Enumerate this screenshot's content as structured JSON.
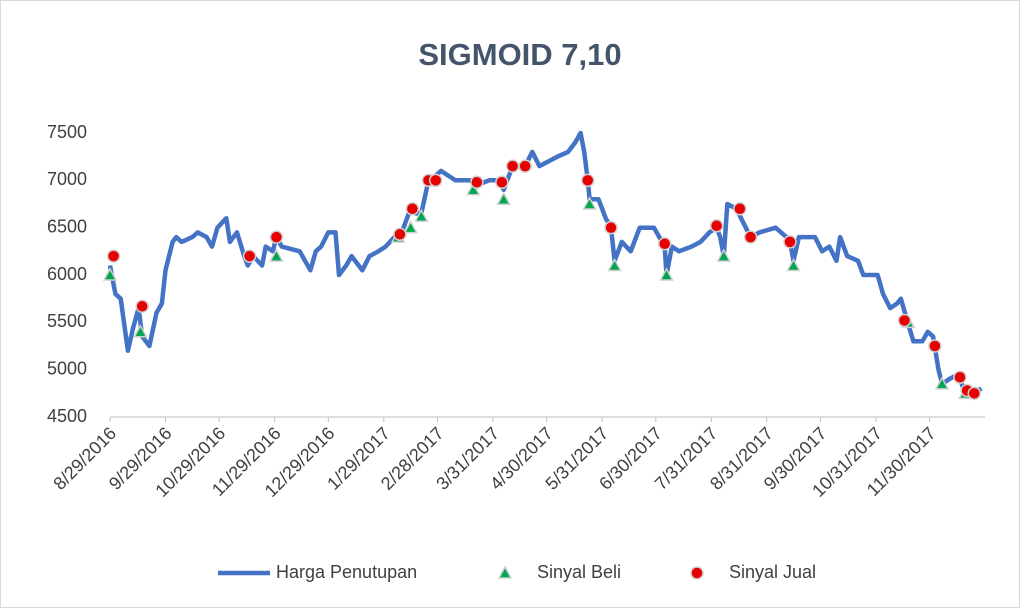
{
  "chart_data": {
    "type": "line",
    "title": "SIGMOID 7,10",
    "xlim": [
      "2016-08-29",
      "2017-12-31"
    ],
    "xticks": [
      {
        "value": "2016-08-29",
        "label": "8/29/2016"
      },
      {
        "value": "2016-09-29",
        "label": "9/29/2016"
      },
      {
        "value": "2016-10-29",
        "label": "10/29/2016"
      },
      {
        "value": "2016-11-29",
        "label": "11/29/2016"
      },
      {
        "value": "2016-12-29",
        "label": "12/29/2016"
      },
      {
        "value": "2017-01-29",
        "label": "1/29/2017"
      },
      {
        "value": "2017-02-28",
        "label": "2/28/2017"
      },
      {
        "value": "2017-03-31",
        "label": "3/31/2017"
      },
      {
        "value": "2017-04-30",
        "label": "4/30/2017"
      },
      {
        "value": "2017-05-31",
        "label": "5/31/2017"
      },
      {
        "value": "2017-06-30",
        "label": "6/30/2017"
      },
      {
        "value": "2017-07-31",
        "label": "7/31/2017"
      },
      {
        "value": "2017-08-31",
        "label": "8/31/2017"
      },
      {
        "value": "2017-09-30",
        "label": "9/30/2017"
      },
      {
        "value": "2017-10-31",
        "label": "10/31/2017"
      },
      {
        "value": "2017-11-30",
        "label": "11/30/2017"
      }
    ],
    "ylim": [
      4500,
      7500
    ],
    "yticks": [
      4500,
      5000,
      5500,
      6000,
      6500,
      7000,
      7500
    ],
    "grid": false,
    "legend": "bottom",
    "series": [
      {
        "name": "Harga Penutupan",
        "type": "line",
        "color": "#4472c4",
        "x": [
          "2016-08-29",
          "2016-09-01",
          "2016-09-04",
          "2016-09-08",
          "2016-09-11",
          "2016-09-14",
          "2016-09-16",
          "2016-09-20",
          "2016-09-24",
          "2016-09-27",
          "2016-09-29",
          "2016-10-03",
          "2016-10-05",
          "2016-10-08",
          "2016-10-14",
          "2016-10-17",
          "2016-10-22",
          "2016-10-25",
          "2016-10-28",
          "2016-11-02",
          "2016-11-04",
          "2016-11-08",
          "2016-11-12",
          "2016-11-14",
          "2016-11-17",
          "2016-11-22",
          "2016-11-24",
          "2016-11-28",
          "2016-11-30",
          "2016-12-03",
          "2016-12-13",
          "2016-12-19",
          "2016-12-22",
          "2016-12-25",
          "2016-12-29",
          "2017-01-02",
          "2017-01-04",
          "2017-01-08",
          "2017-01-11",
          "2017-01-15",
          "2017-01-17",
          "2017-01-21",
          "2017-01-26",
          "2017-01-30",
          "2017-02-04",
          "2017-02-08",
          "2017-02-13",
          "2017-02-16",
          "2017-02-19",
          "2017-02-23",
          "2017-02-27",
          "2017-03-02",
          "2017-03-10",
          "2017-03-18",
          "2017-03-22",
          "2017-03-29",
          "2017-04-03",
          "2017-04-06",
          "2017-04-10",
          "2017-04-14",
          "2017-04-18",
          "2017-04-22",
          "2017-04-26",
          "2017-05-01",
          "2017-05-06",
          "2017-05-12",
          "2017-05-16",
          "2017-05-19",
          "2017-05-21",
          "2017-05-23",
          "2017-05-24",
          "2017-05-29",
          "2017-06-02",
          "2017-06-05",
          "2017-06-07",
          "2017-06-11",
          "2017-06-16",
          "2017-06-21",
          "2017-06-29",
          "2017-07-02",
          "2017-07-05",
          "2017-07-06",
          "2017-07-09",
          "2017-07-13",
          "2017-07-20",
          "2017-07-25",
          "2017-07-30",
          "2017-08-03",
          "2017-08-05",
          "2017-08-07",
          "2017-08-09",
          "2017-08-14",
          "2017-08-18",
          "2017-08-22",
          "2017-08-27",
          "2017-09-05",
          "2017-09-11",
          "2017-09-13",
          "2017-09-15",
          "2017-09-18",
          "2017-09-27",
          "2017-10-01",
          "2017-10-05",
          "2017-10-09",
          "2017-10-11",
          "2017-10-15",
          "2017-10-21",
          "2017-10-24",
          "2017-11-01",
          "2017-11-04",
          "2017-11-08",
          "2017-11-12",
          "2017-11-14",
          "2017-11-17",
          "2017-11-21",
          "2017-11-26",
          "2017-11-29",
          "2017-12-02",
          "2017-12-05",
          "2017-12-07",
          "2017-12-11",
          "2017-12-16",
          "2017-12-19",
          "2017-12-21",
          "2017-12-25",
          "2017-12-29"
        ],
        "values": [
          6100,
          5800,
          5750,
          5200,
          5450,
          5650,
          5350,
          5250,
          5600,
          5700,
          6050,
          6350,
          6400,
          6350,
          6400,
          6450,
          6400,
          6300,
          6500,
          6600,
          6350,
          6450,
          6200,
          6100,
          6200,
          6100,
          6300,
          6250,
          6400,
          6300,
          6250,
          6050,
          6250,
          6300,
          6450,
          6450,
          6000,
          6100,
          6200,
          6100,
          6050,
          6200,
          6250,
          6300,
          6400,
          6450,
          6700,
          6650,
          6650,
          7000,
          7050,
          7100,
          7000,
          7000,
          6950,
          7000,
          7000,
          6900,
          7100,
          7150,
          7150,
          7300,
          7150,
          7200,
          7250,
          7300,
          7400,
          7500,
          7300,
          7000,
          6800,
          6800,
          6600,
          6500,
          6150,
          6350,
          6250,
          6500,
          6500,
          6400,
          6300,
          6000,
          6300,
          6250,
          6300,
          6350,
          6450,
          6500,
          6400,
          6200,
          6750,
          6700,
          6550,
          6400,
          6450,
          6500,
          6400,
          6350,
          6150,
          6400,
          6400,
          6250,
          6300,
          6150,
          6400,
          6200,
          6150,
          6000,
          6000,
          5800,
          5650,
          5700,
          5750,
          5550,
          5300,
          5300,
          5400,
          5350,
          5000,
          4850,
          4900,
          4950,
          4800,
          4750,
          4760,
          4800
        ]
      },
      {
        "name": "Sinyal Beli",
        "type": "scatter",
        "color": "#00a651",
        "x": [
          "2016-08-29",
          "2016-09-15",
          "2016-11-30",
          "2017-02-06",
          "2017-02-13",
          "2017-02-19",
          "2017-03-20",
          "2017-04-06",
          "2017-05-24",
          "2017-06-07",
          "2017-07-06",
          "2017-08-07",
          "2017-09-15",
          "2017-11-18",
          "2017-12-07",
          "2017-12-20"
        ],
        "values": [
          6000,
          5400,
          6200,
          6400,
          6500,
          6620,
          6900,
          6800,
          6750,
          6100,
          6000,
          6200,
          6100,
          5500,
          4850,
          4750
        ]
      },
      {
        "name": "Sinyal Jual",
        "type": "scatter",
        "color": "#e60000",
        "x": [
          "2016-08-31",
          "2016-09-16",
          "2016-11-15",
          "2016-11-30",
          "2017-02-07",
          "2017-02-14",
          "2017-02-23",
          "2017-02-27",
          "2017-03-22",
          "2017-04-05",
          "2017-04-11",
          "2017-04-18",
          "2017-05-23",
          "2017-06-05",
          "2017-07-05",
          "2017-08-03",
          "2017-08-16",
          "2017-08-22",
          "2017-09-13",
          "2017-11-16",
          "2017-12-03",
          "2017-12-17",
          "2017-12-21",
          "2017-12-25"
        ],
        "values": [
          6200,
          5670,
          6200,
          6400,
          6430,
          6700,
          7000,
          7000,
          6980,
          6980,
          7150,
          7150,
          7000,
          6500,
          6330,
          6520,
          6700,
          6400,
          6350,
          5520,
          5250,
          4920,
          4780,
          4750
        ]
      }
    ]
  }
}
